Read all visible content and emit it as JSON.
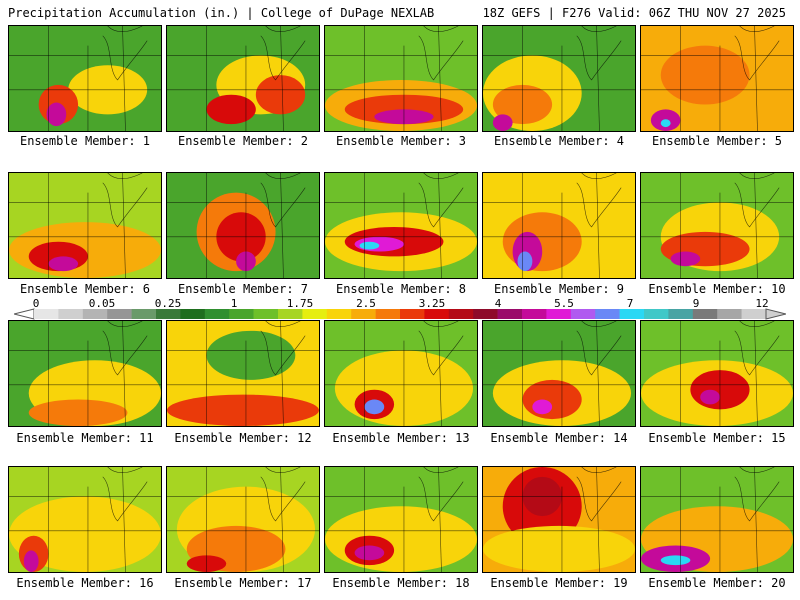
{
  "header": {
    "left": "Precipitation Accumulation (in.) | College of DuPage NEXLAB",
    "right": "18Z GEFS | F276 Valid: 06Z THU NOV 27 2025"
  },
  "colorbar": {
    "ticks": [
      "0",
      "0.05",
      "0.25",
      "1",
      "1.75",
      "2.5",
      "3.25",
      "4",
      "5.5",
      "7",
      "9",
      "12"
    ],
    "colors": [
      "#e6e6e6",
      "#cfcfcf",
      "#b4b4b4",
      "#969696",
      "#6a9a6a",
      "#3a7a3a",
      "#1e6e1e",
      "#2f8f2f",
      "#4aa52c",
      "#6ec02a",
      "#a7d522",
      "#e6ee10",
      "#f8d40a",
      "#f7ac0a",
      "#f57a0a",
      "#ea3a0a",
      "#d80a0a",
      "#b40a16",
      "#8e0a2a",
      "#9a0a6a",
      "#c40a9a",
      "#e01ad6",
      "#b05af0",
      "#6a88f6",
      "#2ad8f4",
      "#40c8c8",
      "#48a4a4",
      "#7a7a7a",
      "#a6a6a6",
      "#cfcfcf"
    ]
  },
  "panels": [
    {
      "label": "Ensemble Member: 1"
    },
    {
      "label": "Ensemble Member: 2"
    },
    {
      "label": "Ensemble Member: 3"
    },
    {
      "label": "Ensemble Member: 4"
    },
    {
      "label": "Ensemble Member: 5"
    },
    {
      "label": "Ensemble Member: 6"
    },
    {
      "label": "Ensemble Member: 7"
    },
    {
      "label": "Ensemble Member: 8"
    },
    {
      "label": "Ensemble Member: 9"
    },
    {
      "label": "Ensemble Member: 10"
    },
    {
      "label": "Ensemble Member: 11"
    },
    {
      "label": "Ensemble Member: 12"
    },
    {
      "label": "Ensemble Member: 13"
    },
    {
      "label": "Ensemble Member: 14"
    },
    {
      "label": "Ensemble Member: 15"
    },
    {
      "label": "Ensemble Member: 16"
    },
    {
      "label": "Ensemble Member: 17"
    },
    {
      "label": "Ensemble Member: 18"
    },
    {
      "label": "Ensemble Member: 19"
    },
    {
      "label": "Ensemble Member: 20"
    }
  ]
}
